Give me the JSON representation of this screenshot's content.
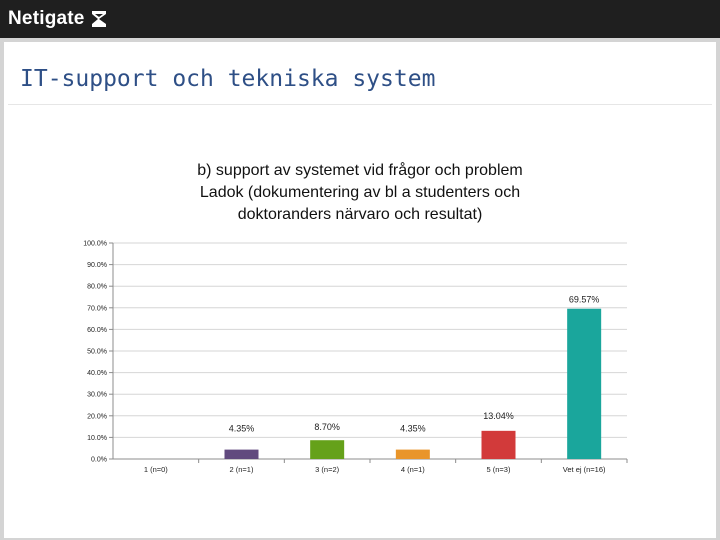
{
  "header": {
    "brand": "Netigate",
    "icon": "netigate-logo-mark"
  },
  "slide": {
    "title": "IT-support och tekniska system"
  },
  "chart_data": {
    "type": "bar",
    "title_lines": [
      "b) support av systemet vid frågor och problem",
      "Ladok (dokumentering av bl a studenters och",
      "doktoranders närvaro och resultat)"
    ],
    "categories": [
      "1 (n=0)",
      "2 (n=1)",
      "3 (n=2)",
      "4 (n=1)",
      "5 (n=3)",
      "Vet ej (n=16)"
    ],
    "values": [
      0,
      4.35,
      8.7,
      4.35,
      13.04,
      69.57
    ],
    "data_labels": [
      "",
      "4.35%",
      "8.70%",
      "4.35%",
      "13.04%",
      "69.57%"
    ],
    "colors": [
      "#3f62a8",
      "#614a7e",
      "#65a11a",
      "#e9952a",
      "#d23a3a",
      "#1aa69c"
    ],
    "yticks": [
      "0.0%",
      "10.0%",
      "20.0%",
      "30.0%",
      "40.0%",
      "50.0%",
      "60.0%",
      "70.0%",
      "80.0%",
      "90.0%",
      "100.0%"
    ],
    "ylim": [
      0,
      100
    ],
    "grid": true,
    "legend": "none",
    "xlabel": "",
    "ylabel": ""
  }
}
